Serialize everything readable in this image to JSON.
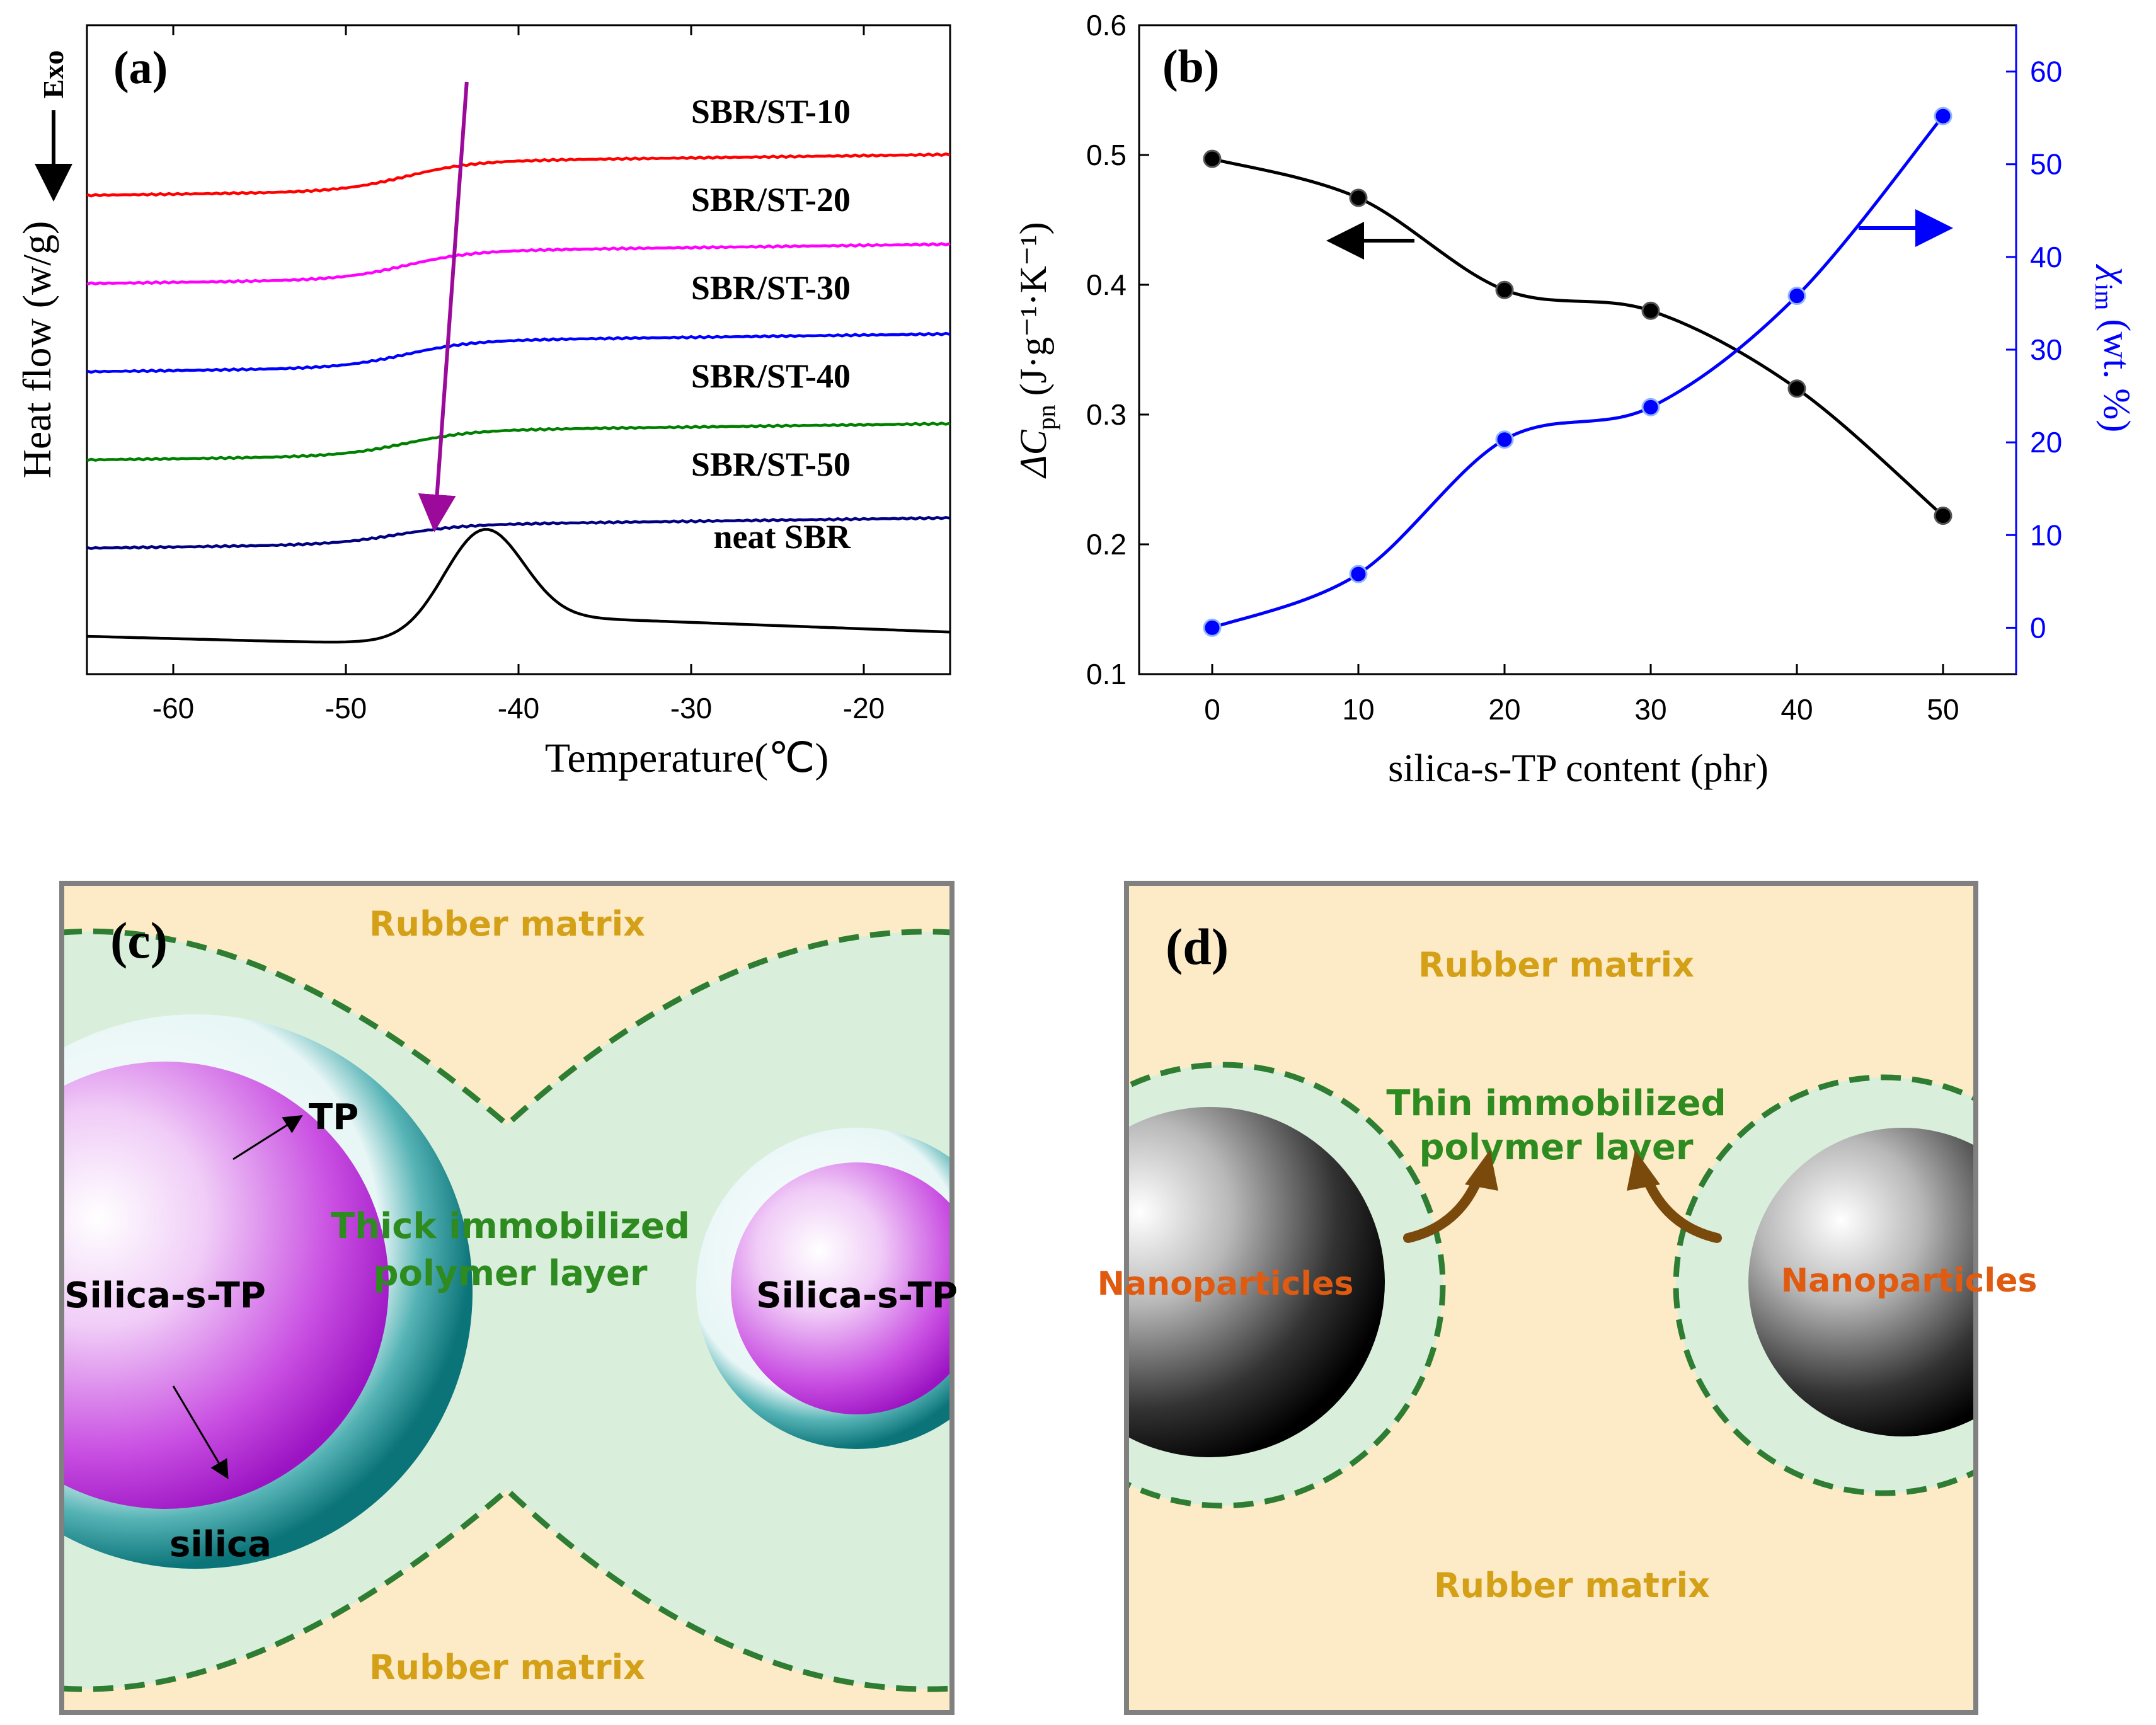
{
  "chart_data": [
    {
      "panel": "(a)",
      "type": "line",
      "xlabel": "Temperature(℃)",
      "ylabel": "Heat flow (w/g)",
      "exo_label": "Exo",
      "xlim": [
        -65,
        -15
      ],
      "xticks": [
        -60,
        -50,
        -40,
        -30,
        -20
      ],
      "grid": false,
      "series": [
        {
          "name": "SBR/ST-10",
          "color": "#ff0000",
          "offset": 5,
          "tg": -43.5,
          "step": 0.78
        },
        {
          "name": "SBR/ST-20",
          "color": "#ff00ff",
          "offset": 4,
          "tg": -43.5,
          "step": 0.74
        },
        {
          "name": "SBR/ST-30",
          "color": "#0000ff",
          "offset": 3,
          "tg": -43.5,
          "step": 0.7
        },
        {
          "name": "SBR/ST-40",
          "color": "#008000",
          "offset": 2,
          "tg": -43.5,
          "step": 0.66
        },
        {
          "name": "SBR/ST-50",
          "color": "#000080",
          "offset": 1,
          "tg": -44.0,
          "step": 0.5
        },
        {
          "name": "neat SBR",
          "color": "#000000",
          "offset": 0,
          "tg": -42.0,
          "step": 2.4
        }
      ],
      "annotation": {
        "type": "arrow",
        "from": [
          -43.0,
          "SBR/ST-10"
        ],
        "to": [
          -45.0,
          "neat SBR"
        ],
        "color": "#9b0a9b"
      }
    },
    {
      "panel": "(b)",
      "type": "line",
      "xlabel": "silica-s-TP content (phr)",
      "ylabel_left": "ΔC",
      "ylabel_left_sub": "pn",
      "ylabel_left_units": "(J·g⁻¹·K⁻¹)",
      "ylabel_right": "χ",
      "ylabel_right_sub": "im",
      "ylabel_right_units": "(wt. %)",
      "x": [
        0,
        10,
        20,
        30,
        40,
        50
      ],
      "xticks": [
        0,
        10,
        20,
        30,
        40,
        50
      ],
      "xlim": [
        -5,
        55
      ],
      "ylim_left": [
        0.1,
        0.6
      ],
      "yticks_left": [
        "0.1",
        "0.2",
        "0.3",
        "0.4",
        "0.5",
        "0.6"
      ],
      "ylim_right": [
        -5,
        65
      ],
      "yticks_right": [
        "0",
        "10",
        "20",
        "30",
        "40",
        "50",
        "60"
      ],
      "series": [
        {
          "name": "ΔCpn",
          "axis": "left",
          "color": "#000000",
          "values": [
            0.497,
            0.467,
            0.396,
            0.38,
            0.32,
            0.222
          ]
        },
        {
          "name": "χim",
          "axis": "right",
          "color": "#0000ff",
          "values": [
            0,
            5.8,
            20.3,
            23.8,
            35.8,
            55.2
          ]
        }
      ]
    }
  ],
  "panels": {
    "a": {
      "label": "(a)"
    },
    "b": {
      "label": "(b)"
    },
    "c": {
      "label": "(c)",
      "rubber_top": "Rubber matrix",
      "rubber_bottom": "Rubber matrix",
      "layer_line1": "Thick immobilized",
      "layer_line2": "polymer layer",
      "tp_label": "TP",
      "silica_label": "silica",
      "particle_left": "Silica-s-TP",
      "particle_right": "Silica-s-TP"
    },
    "d": {
      "label": "(d)",
      "rubber_top": "Rubber matrix",
      "rubber_bottom": "Rubber matrix",
      "layer_line1": "Thin immobilized",
      "layer_line2": "polymer layer",
      "particle_left": "Nanoparticles",
      "particle_right": "Nanoparticles"
    }
  },
  "colors": {
    "rubber": "#fdebc8",
    "layer": "#d9efdc",
    "dashed": "#2e7d32",
    "teal": "#0f7f84",
    "purple": "#b81bd8",
    "rubber_text": "#d4a017",
    "layer_text": "#2e8b1f",
    "nano_text": "#e05a10",
    "arrow_brown": "#7a4a0c"
  }
}
